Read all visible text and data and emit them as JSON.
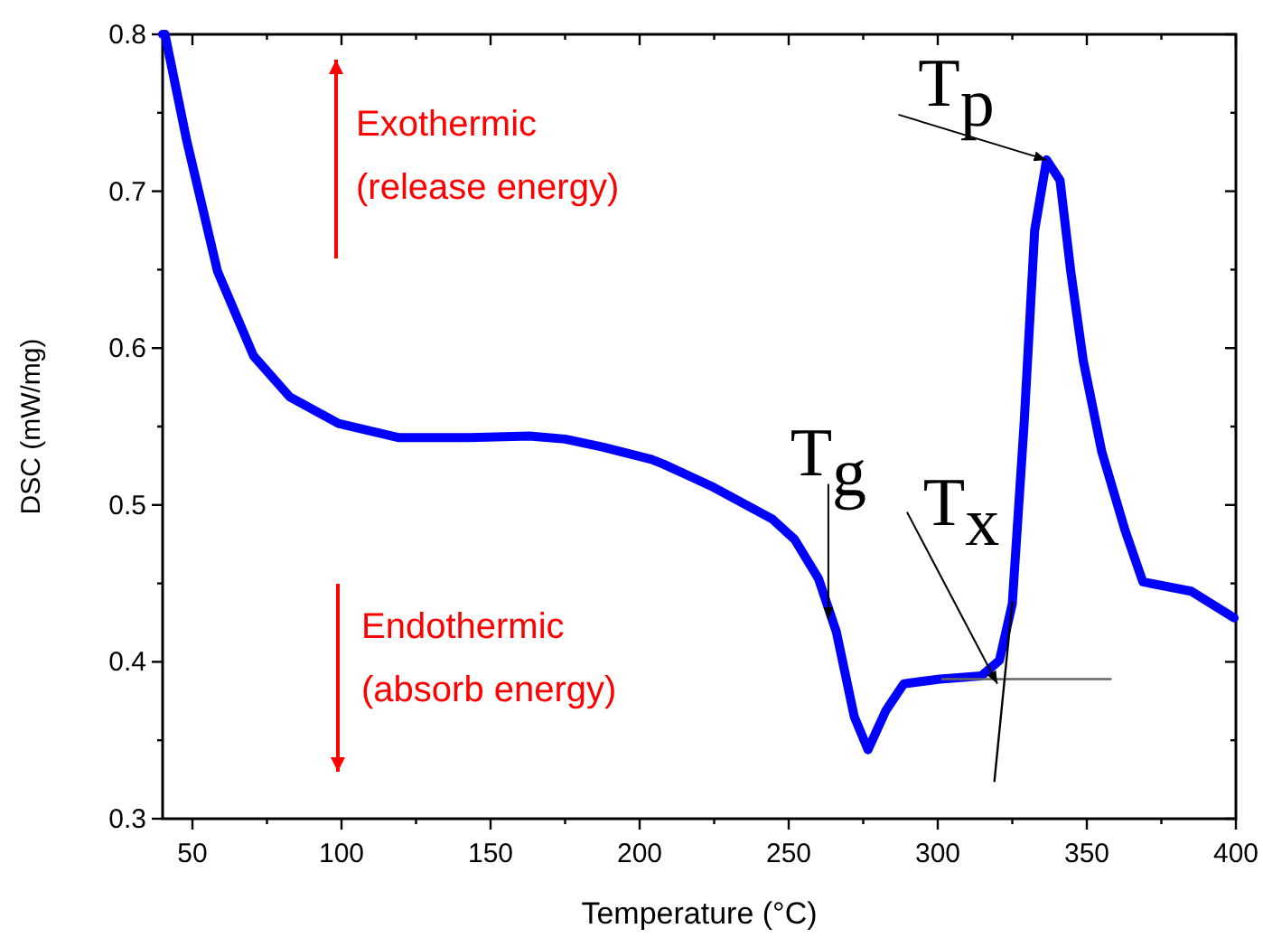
{
  "chart_data": {
    "type": "line",
    "xlabel": "Temperature (°C)",
    "ylabel": "DSC (mW/mg)",
    "xlim": [
      40,
      400
    ],
    "ylim": [
      0.3,
      0.8
    ],
    "xticks": [
      50,
      {
        "value": 75,
        "label": null
      },
      100,
      {
        "value": 125,
        "label": null
      },
      150,
      {
        "value": 175,
        "label": null
      },
      200,
      {
        "value": 225,
        "label": null
      },
      250,
      {
        "value": 275,
        "label": null
      },
      300,
      {
        "value": 325,
        "label": null
      },
      350,
      {
        "value": 375,
        "label": null
      },
      400
    ],
    "yticks": [
      0.3,
      {
        "value": 0.35,
        "label": null
      },
      0.4,
      {
        "value": 0.45,
        "label": null
      },
      0.5,
      {
        "value": 0.55,
        "label": null
      },
      0.6,
      {
        "value": 0.65,
        "label": null
      },
      0.7,
      {
        "value": 0.75,
        "label": null
      },
      0.8
    ],
    "series": [
      {
        "color": "#0000ff",
        "x": [
          40,
          40.8,
          48,
          58.4,
          70.5,
          82.6,
          99,
          119,
          143,
          163,
          175,
          187.5,
          204,
          208,
          216,
          224,
          244.5,
          252,
          260,
          266,
          272,
          276.6,
          282.6,
          288.6,
          300.7,
          314.6,
          320.7,
          325,
          329,
          332.5,
          336.5,
          341,
          344.6,
          348.8,
          355,
          362.8,
          368.8,
          385,
          399.4
        ],
        "values": [
          0.8,
          0.8,
          0.733,
          0.649,
          0.595,
          0.569,
          0.552,
          0.543,
          0.543,
          0.544,
          0.542,
          0.537,
          0.529,
          0.526,
          0.519,
          0.512,
          0.491,
          0.478,
          0.453,
          0.419,
          0.365,
          0.344,
          0.369,
          0.386,
          0.389,
          0.391,
          0.401,
          0.437,
          0.553,
          0.675,
          0.72,
          0.707,
          0.649,
          0.592,
          0.534,
          0.484,
          0.451,
          0.445,
          0.428
        ]
      },
      {
        "color": "#666666",
        "x": [
          301.5,
          358
        ],
        "values": [
          0.389,
          0.389
        ]
      },
      {
        "color": "#000000",
        "x": [
          319,
          325
        ],
        "values": [
          0.324,
          0.438
        ]
      }
    ],
    "annotations": [
      {
        "text": "T$_{g}$",
        "x": 263.3,
        "y": 0.427
      },
      {
        "text": "T$_{x}$",
        "x": 320,
        "y": 0.386
      },
      {
        "text": "T$_{p}$",
        "x": 336.5,
        "y": 0.72
      },
      "Exothermic\n(release energy)",
      "Endothermic\n(absorb energy)"
    ]
  }
}
